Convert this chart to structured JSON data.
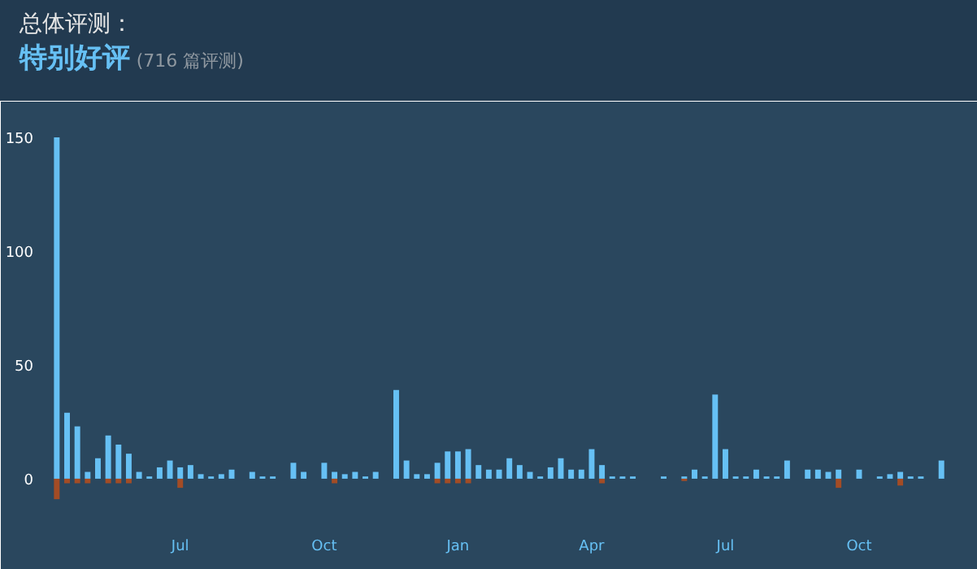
{
  "chart_data": {
    "type": "bar",
    "title": "总体评测：",
    "subtitle": "特别好评",
    "annotations": [
      "(716 篇评测)"
    ],
    "categories": [
      null,
      null,
      null,
      null,
      null,
      null,
      null,
      null,
      null,
      null,
      null,
      null,
      "Jul",
      null,
      null,
      null,
      null,
      null,
      null,
      null,
      null,
      null,
      null,
      null,
      null,
      null,
      "Oct",
      null,
      null,
      null,
      null,
      null,
      null,
      null,
      null,
      null,
      null,
      null,
      null,
      "Jan",
      null,
      null,
      null,
      null,
      null,
      null,
      null,
      null,
      null,
      null,
      null,
      null,
      "Apr",
      null,
      null,
      null,
      null,
      null,
      null,
      null,
      null,
      null,
      null,
      null,
      null,
      "Jul",
      null,
      null,
      null,
      null,
      null,
      null,
      null,
      null,
      null,
      null,
      null,
      null,
      "Oct",
      null,
      null,
      null,
      null,
      null,
      null,
      null,
      null
    ],
    "series": [
      {
        "color": "#66c0f4",
        "values": [
          150,
          29,
          23,
          3,
          9,
          19,
          15,
          11,
          3,
          1,
          5,
          8,
          5,
          6,
          2,
          1,
          2,
          4,
          0,
          3,
          1,
          1,
          0,
          7,
          3,
          0,
          7,
          3,
          2,
          3,
          1,
          3,
          0,
          39,
          8,
          2,
          2,
          7,
          12,
          12,
          13,
          6,
          4,
          4,
          9,
          6,
          3,
          1,
          5,
          9,
          4,
          4,
          13,
          6,
          1,
          1,
          1,
          0,
          0,
          1,
          0,
          1,
          4,
          1,
          37,
          13,
          1,
          1,
          4,
          1,
          1,
          8,
          0,
          4,
          4,
          3,
          4,
          0,
          4,
          0,
          1,
          2,
          3,
          1,
          1,
          0,
          8
        ]
      },
      {
        "color": "#a34c25",
        "values": [
          -9,
          -2,
          -2,
          -2,
          0,
          -2,
          -2,
          -2,
          0,
          0,
          0,
          0,
          -4,
          0,
          0,
          0,
          0,
          0,
          0,
          0,
          0,
          0,
          0,
          0,
          0,
          0,
          0,
          -2,
          0,
          0,
          0,
          0,
          0,
          0,
          0,
          0,
          0,
          -2,
          -2,
          -2,
          -2,
          0,
          0,
          0,
          0,
          0,
          0,
          0,
          0,
          0,
          0,
          0,
          0,
          -2,
          0,
          0,
          0,
          0,
          0,
          0,
          0,
          -1,
          0,
          0,
          0,
          0,
          0,
          0,
          0,
          0,
          0,
          0,
          0,
          0,
          0,
          0,
          -4,
          0,
          0,
          0,
          0,
          0,
          -3,
          0,
          0,
          0,
          0
        ]
      }
    ],
    "ylim": [
      -18.6,
      163.6
    ],
    "yticks": [
      0,
      50,
      100,
      150
    ],
    "grid": false
  }
}
